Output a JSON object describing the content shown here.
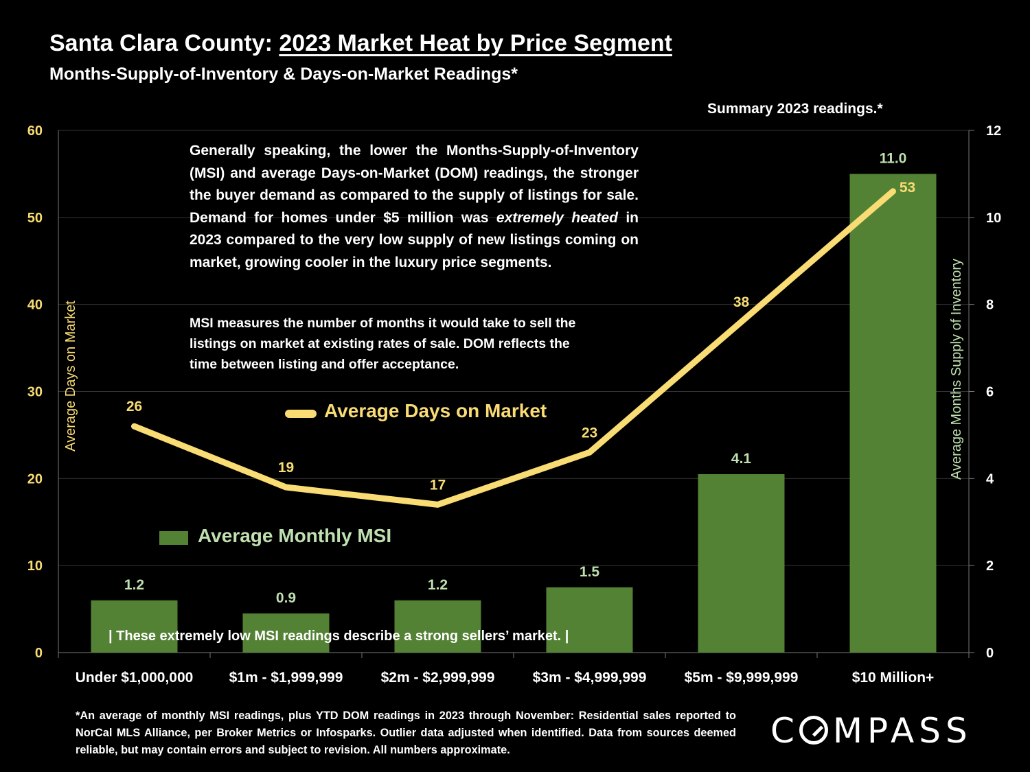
{
  "header": {
    "title_prefix": "Santa Clara County: ",
    "title_main": "2023 Market Heat by Price Segment",
    "subtitle": "Months-Supply-of-Inventory & Days-on-Market Readings*",
    "summary": "Summary 2023 readings.*"
  },
  "notes": {
    "paragraph1_a": "Generally speaking, the lower the Months-Supply-of-Inventory (MSI) and average Days-on-Market (DOM) readings, the stronger the buyer demand as compared to the supply of listings for sale. Demand for homes under $5 million was ",
    "paragraph1_em": "extremely heated",
    "paragraph1_b": " in 2023 compared to the very low supply of new listings coming on market, growing cooler in the luxury price segments.",
    "paragraph2": "MSI measures the number of months it would take to sell the listings on market at existing rates of sale. DOM reflects the time between listing and offer acceptance.",
    "callout": "|  These extremely low MSI readings describe a strong sellers’ market.  |"
  },
  "legend": {
    "line": "Average Days on Market",
    "bar": "Average Monthly MSI"
  },
  "footnote": "*An average of monthly MSI readings, plus YTD DOM readings in 2023 through November:  Residential sales reported to NorCal MLS Alliance, per Broker Metrics or Infosparks. Outlier data adjusted when identified. Data from sources deemed reliable, but may contain errors and subject to revision. All numbers approximate.",
  "logo": {
    "text": "COMPASS"
  },
  "colors": {
    "background": "#000000",
    "bar": "#548235",
    "bar_label": "#bfe0b0",
    "line": "#f9dc73",
    "axis_left": "#f9dc73",
    "axis_right": "#bfe0b0",
    "grid": "#333333"
  },
  "chart_data": {
    "type": "bar+line",
    "categories": [
      "Under $1,000,000",
      "$1m - $1,999,999",
      "$2m - $2,999,999",
      "$3m - $4,999,999",
      "$5m - $9,999,999",
      "$10 Million+"
    ],
    "series": [
      {
        "name": "Average Monthly MSI",
        "type": "bar",
        "axis": "right",
        "values": [
          1.2,
          0.9,
          1.2,
          1.5,
          4.1,
          11.0
        ],
        "labels": [
          "1.2",
          "0.9",
          "1.2",
          "1.5",
          "4.1",
          "11.0"
        ]
      },
      {
        "name": "Average Days on Market",
        "type": "line",
        "axis": "left",
        "values": [
          26,
          19,
          17,
          23,
          38,
          53
        ],
        "labels": [
          "26",
          "19",
          "17",
          "23",
          "38",
          "53"
        ]
      }
    ],
    "y_left": {
      "label": "Average Days on Market",
      "min": 0,
      "max": 60,
      "ticks": [
        "0",
        "10",
        "20",
        "30",
        "40",
        "50",
        "60"
      ]
    },
    "y_right": {
      "label": "Average Months Supply of Inventory",
      "min": 0,
      "max": 12,
      "ticks": [
        "0",
        "2",
        "4",
        "6",
        "8",
        "10",
        "12"
      ]
    },
    "grid": true
  }
}
